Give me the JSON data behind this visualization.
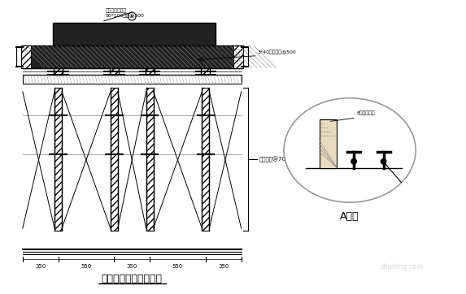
{
  "title": "阶梯教室梁板支撑系统",
  "detail_title": "A大样",
  "ann_top1": "混凝土侧向支撑",
  "ann_top2": "50*100木枋@300",
  "ann_right": "3*40钢钉间距@500",
  "ann_bracket": "碗扣支柱@700",
  "ann_detail": "8斤锚栓穿孔",
  "dims": [
    "350",
    "550",
    "350",
    "550",
    "350"
  ],
  "bg_color": "#ffffff",
  "lc": "#000000",
  "detail_fill": "#e8dcc0",
  "gray_light": "#cccccc",
  "watermark": "zhulong.com"
}
